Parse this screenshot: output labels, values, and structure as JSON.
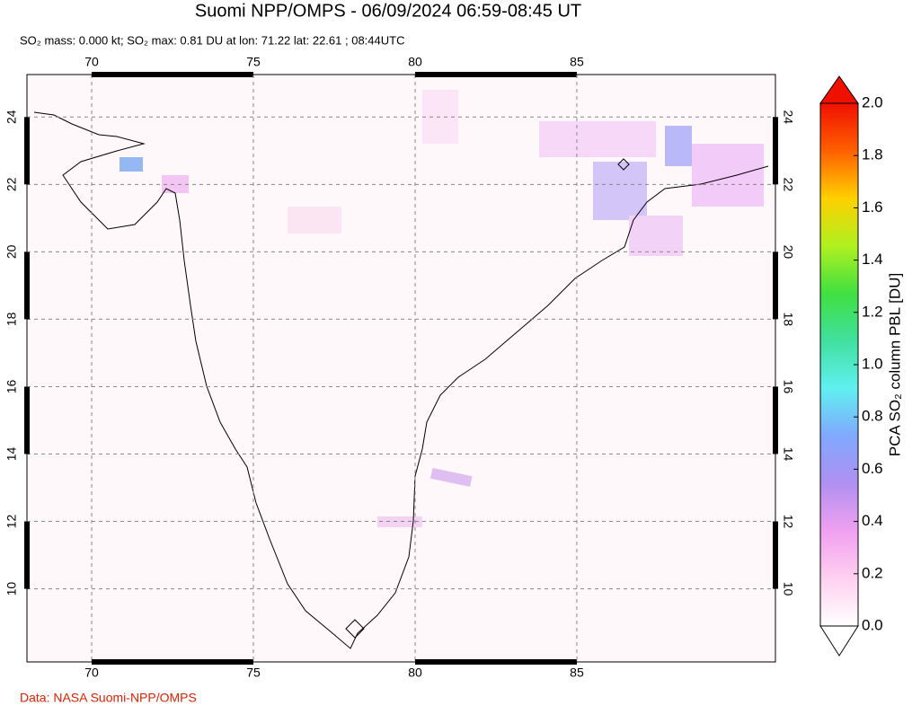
{
  "header": {
    "title": "Suomi NPP/OMPS - 06/09/2024 06:59-08:45 UT",
    "subtitle": "SO₂ mass: 0.000 kt; SO₂ max: 0.81 DU at lon: 71.22 lat: 22.61 ; 08:44UTC"
  },
  "map": {
    "xlim": [
      68,
      91.14
    ],
    "ylim": [
      7.83,
      25.26
    ],
    "lon_ticks": [
      70,
      75,
      80,
      85
    ],
    "lat_ticks": [
      10,
      12,
      14,
      16,
      18,
      20,
      22,
      24
    ],
    "grid": true
  },
  "colorbar": {
    "label": "PCA SO₂ column PBL [DU]",
    "lim": [
      0,
      2
    ],
    "ticks": [
      {
        "value": 0,
        "label": "0.0"
      },
      {
        "value": 0.2,
        "label": "0.2"
      },
      {
        "value": 0.4,
        "label": "0.4"
      },
      {
        "value": 0.6,
        "label": "0.6"
      },
      {
        "value": 0.8,
        "label": "0.8"
      },
      {
        "value": 1.0,
        "label": "1.0"
      },
      {
        "value": 1.2,
        "label": "1.2"
      },
      {
        "value": 1.4,
        "label": "1.4"
      },
      {
        "value": 1.6,
        "label": "1.6"
      },
      {
        "value": 1.8,
        "label": "1.8"
      },
      {
        "value": 2.0,
        "label": "2.0"
      }
    ],
    "colors": [
      "#ffffff",
      "#ffd0f0",
      "#f0a0f0",
      "#b090f0",
      "#80a8ff",
      "#60f0f0",
      "#40e0a0",
      "#40e040",
      "#b0f020",
      "#ffd000",
      "#ff6000",
      "#f01000"
    ]
  },
  "footer": "Data: NASA Suomi-NPP/OMPS"
}
